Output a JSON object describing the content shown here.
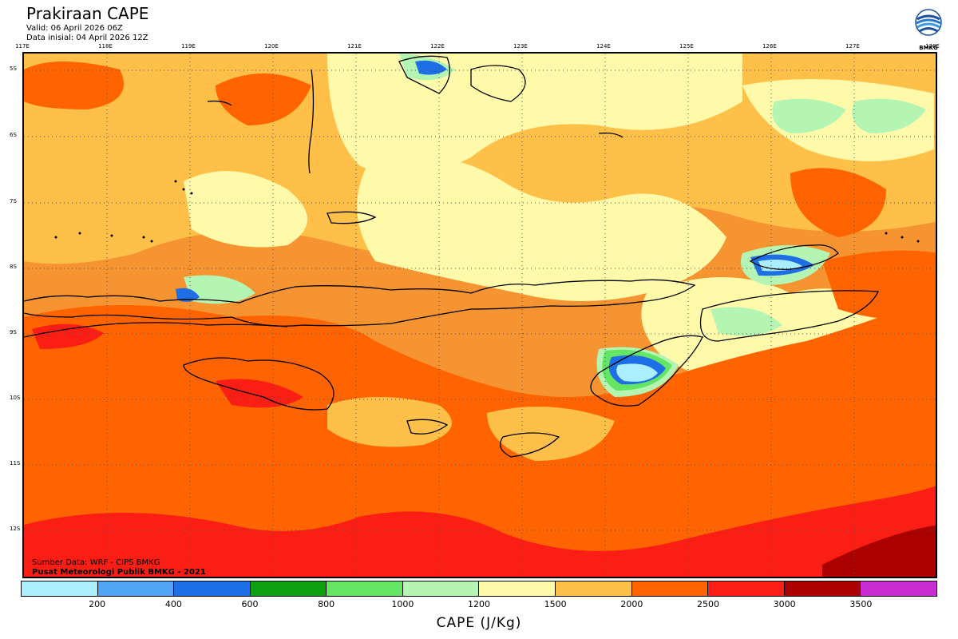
{
  "header": {
    "title": "Prakiraan CAPE",
    "valid": "Valid: 06 April 2026 06Z",
    "init": "Data inisial: 04 April 2026 12Z",
    "logo_text": "BMKG"
  },
  "lon_labels": [
    "117E",
    "118E",
    "119E",
    "120E",
    "121E",
    "122E",
    "123E",
    "124E",
    "125E",
    "126E",
    "127E",
    "128E"
  ],
  "lat_labels": [
    "5S",
    "6S",
    "7S",
    "8S",
    "9S",
    "10S",
    "11S",
    "12S"
  ],
  "credits": {
    "line1": "Sumber Data: WRF - CIPS BMKG",
    "line2": "Pusat Meteorologi Publik BMKG - 2021"
  },
  "colorbar": {
    "colors": [
      "#aaeeff",
      "#50a5f5",
      "#1e6ee6",
      "#0fa00f",
      "#64e664",
      "#b4f5b4",
      "#fffaaa",
      "#ffc04a",
      "#ff6400",
      "#fa1e14",
      "#aa0000",
      "#c82dd2"
    ],
    "ticks": [
      "200",
      "400",
      "600",
      "800",
      "1000",
      "1200",
      "1500",
      "2000",
      "2500",
      "3000",
      "3500"
    ],
    "label": "CAPE (J/Kg)"
  },
  "colors": {
    "base": "#f59430",
    "light_orange": "#ffc04a",
    "pale_yellow": "#fffaaa",
    "red": "#fa1e14",
    "dark_red": "#aa0000",
    "light_green": "#b4f5b4",
    "green": "#64e664",
    "blue": "#1e6ee6",
    "light_blue": "#aaeeff"
  }
}
